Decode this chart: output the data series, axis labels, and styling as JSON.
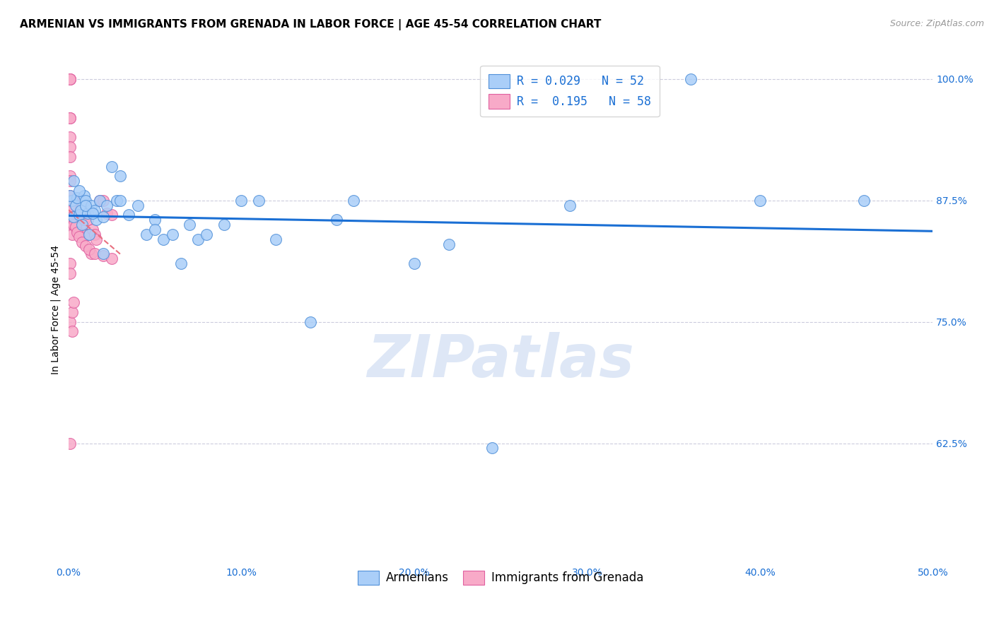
{
  "title": "ARMENIAN VS IMMIGRANTS FROM GRENADA IN LABOR FORCE | AGE 45-54 CORRELATION CHART",
  "source": "Source: ZipAtlas.com",
  "ylabel": "In Labor Force | Age 45-54",
  "xmin": 0.0,
  "xmax": 0.5,
  "ymin": 0.5,
  "ymax": 1.025,
  "yticks": [
    0.625,
    0.75,
    0.875,
    1.0
  ],
  "ytick_labels": [
    "62.5%",
    "75.0%",
    "87.5%",
    "100.0%"
  ],
  "xticks": [
    0.0,
    0.1,
    0.2,
    0.3,
    0.4,
    0.5
  ],
  "xtick_labels": [
    "0.0%",
    "10.0%",
    "20.0%",
    "30.0%",
    "40.0%",
    "50.0%"
  ],
  "armenians_x": [
    0.002,
    0.003,
    0.004,
    0.005,
    0.006,
    0.007,
    0.008,
    0.009,
    0.01,
    0.011,
    0.012,
    0.013,
    0.015,
    0.016,
    0.018,
    0.02,
    0.022,
    0.025,
    0.028,
    0.03,
    0.035,
    0.04,
    0.045,
    0.05,
    0.055,
    0.06,
    0.065,
    0.07,
    0.075,
    0.08,
    0.09,
    0.1,
    0.11,
    0.12,
    0.14,
    0.155,
    0.165,
    0.2,
    0.22,
    0.245,
    0.29,
    0.36,
    0.4,
    0.46,
    0.001,
    0.003,
    0.006,
    0.01,
    0.014,
    0.02,
    0.03,
    0.05
  ],
  "armenians_y": [
    0.875,
    0.858,
    0.87,
    0.878,
    0.86,
    0.865,
    0.85,
    0.88,
    0.875,
    0.862,
    0.84,
    0.87,
    0.865,
    0.855,
    0.875,
    0.82,
    0.87,
    0.91,
    0.875,
    0.9,
    0.86,
    0.87,
    0.84,
    0.855,
    0.835,
    0.84,
    0.81,
    0.85,
    0.835,
    0.84,
    0.85,
    0.875,
    0.875,
    0.835,
    0.75,
    0.855,
    0.875,
    0.81,
    0.83,
    0.62,
    0.87,
    1.0,
    0.875,
    0.875,
    0.88,
    0.895,
    0.885,
    0.87,
    0.862,
    0.858,
    0.875,
    0.845
  ],
  "grenada_x": [
    0.001,
    0.001,
    0.001,
    0.001,
    0.001,
    0.001,
    0.001,
    0.001,
    0.001,
    0.001,
    0.002,
    0.002,
    0.002,
    0.002,
    0.002,
    0.003,
    0.003,
    0.003,
    0.004,
    0.004,
    0.005,
    0.006,
    0.007,
    0.008,
    0.009,
    0.01,
    0.011,
    0.012,
    0.013,
    0.014,
    0.015,
    0.016,
    0.018,
    0.02,
    0.022,
    0.025,
    0.001,
    0.001,
    0.001,
    0.002,
    0.002,
    0.003,
    0.004,
    0.005,
    0.006,
    0.008,
    0.01,
    0.012,
    0.015,
    0.02,
    0.025,
    0.001,
    0.001,
    0.001,
    0.002,
    0.003,
    0.001,
    0.002
  ],
  "grenada_y": [
    1.0,
    1.0,
    1.0,
    0.96,
    0.96,
    0.94,
    0.93,
    0.92,
    0.9,
    0.895,
    0.87,
    0.86,
    0.85,
    0.84,
    0.875,
    0.875,
    0.86,
    0.855,
    0.85,
    0.862,
    0.845,
    0.855,
    0.85,
    0.84,
    0.855,
    0.84,
    0.855,
    0.84,
    0.82,
    0.845,
    0.84,
    0.835,
    0.875,
    0.875,
    0.862,
    0.86,
    0.88,
    0.875,
    0.87,
    0.865,
    0.858,
    0.85,
    0.848,
    0.842,
    0.838,
    0.832,
    0.828,
    0.825,
    0.82,
    0.818,
    0.815,
    0.81,
    0.8,
    0.75,
    0.76,
    0.77,
    0.625,
    0.74
  ],
  "blue_line_color": "#1a6fd4",
  "pink_line_color": "#e87080",
  "scatter_blue": "#aacef8",
  "scatter_pink": "#f8aac8",
  "scatter_blue_edge": "#5090d8",
  "scatter_pink_edge": "#e060a0",
  "watermark_color": "#c8d8f0",
  "title_fontsize": 11,
  "axis_label_fontsize": 10,
  "tick_fontsize": 10,
  "legend_fontsize": 12,
  "source_fontsize": 9
}
